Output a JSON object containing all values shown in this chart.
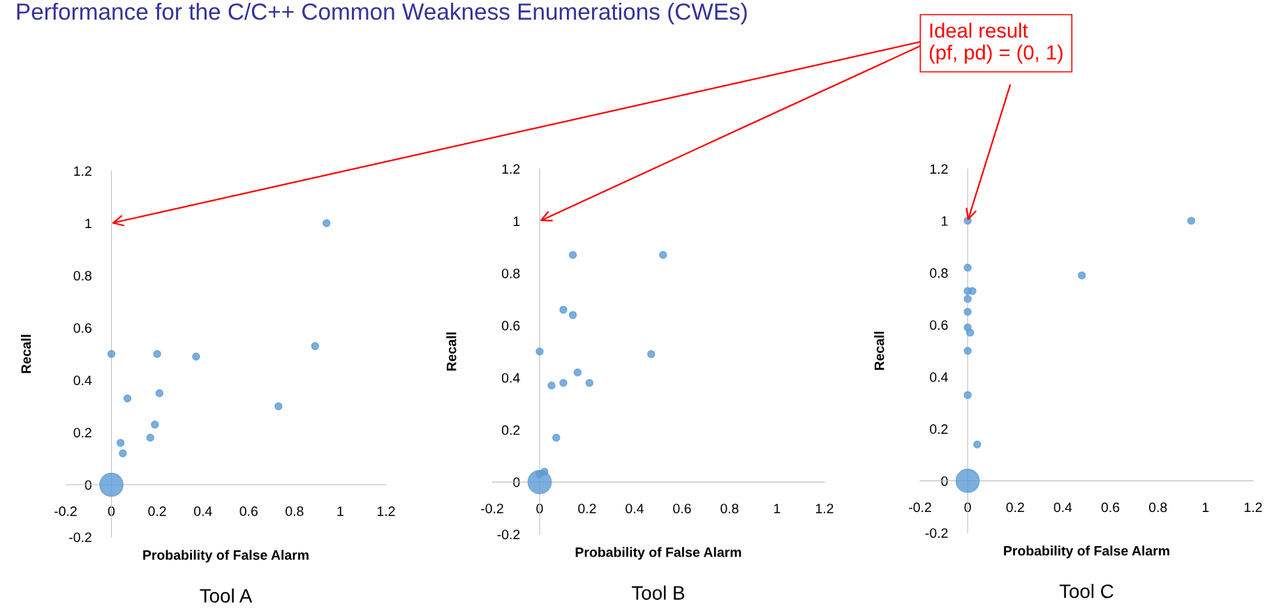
{
  "chart_data": [
    {
      "type": "bubble",
      "title": "Tool A",
      "xlabel": "Probability of False Alarm",
      "ylabel": "Recall",
      "xlim": [
        -0.2,
        1.2
      ],
      "ylim": [
        -0.2,
        1.2
      ],
      "xticks": [
        -0.2,
        0,
        0.2,
        0.4,
        0.6,
        0.8,
        1,
        1.2
      ],
      "yticks": [
        -0.2,
        0,
        0.2,
        0.4,
        0.6,
        0.8,
        1,
        1.2
      ],
      "annotations": [
        "Performance for the C/C++ Common Weakness Enumerations (CWEs)"
      ],
      "series": [
        {
          "color": "#5b9bd5",
          "x": [
            0,
            0,
            0.2,
            0.37,
            0.89,
            0.94,
            0.07,
            0.21,
            0.73,
            0.19,
            0.17,
            0.04,
            0.05
          ],
          "values": [
            0,
            0.5,
            0.5,
            0.49,
            0.53,
            1.0,
            0.33,
            0.35,
            0.3,
            0.23,
            0.18,
            0.16,
            0.12
          ],
          "sizes": [
            1,
            0.09,
            0.09,
            0.09,
            0.09,
            0.09,
            0.09,
            0.09,
            0.09,
            0.09,
            0.09,
            0.09,
            0.09
          ]
        }
      ]
    },
    {
      "type": "bubble",
      "title": "Tool B",
      "xlabel": "Probability of False Alarm",
      "ylabel": "Recall",
      "xlim": [
        -0.2,
        1.2
      ],
      "ylim": [
        -0.2,
        1.2
      ],
      "xticks": [
        -0.2,
        0,
        0.2,
        0.4,
        0.6,
        0.8,
        1,
        1.2
      ],
      "yticks": [
        -0.2,
        0,
        0.2,
        0.4,
        0.6,
        0.8,
        1,
        1.2
      ],
      "series": [
        {
          "color": "#5b9bd5",
          "x": [
            0,
            0,
            0.02,
            0.14,
            0.52,
            0.1,
            0.14,
            0,
            0.47,
            0.16,
            0.05,
            0.1,
            0.21,
            0.07
          ],
          "values": [
            0,
            0.03,
            0.04,
            0.87,
            0.87,
            0.66,
            0.64,
            0.5,
            0.49,
            0.42,
            0.37,
            0.38,
            0.38,
            0.17
          ],
          "sizes": [
            1,
            0.09,
            0.09,
            0.09,
            0.09,
            0.09,
            0.09,
            0.09,
            0.09,
            0.09,
            0.09,
            0.09,
            0.09,
            0.09
          ]
        }
      ]
    },
    {
      "type": "bubble",
      "title": "Tool C",
      "xlabel": "Probability of False Alarm",
      "ylabel": "Recall",
      "xlim": [
        -0.2,
        1.2
      ],
      "ylim": [
        -0.2,
        1.2
      ],
      "xticks": [
        -0.2,
        0,
        0.2,
        0.4,
        0.6,
        0.8,
        1,
        1.2
      ],
      "yticks": [
        -0.2,
        0,
        0.2,
        0.4,
        0.6,
        0.8,
        1,
        1.2
      ],
      "annotations": [
        "Ideal result\n(pf, pd) = (0, 1)"
      ],
      "series": [
        {
          "color": "#5b9bd5",
          "x": [
            0,
            0,
            0.94,
            0,
            0.48,
            0,
            0.02,
            0,
            0,
            0,
            0.01,
            0,
            0,
            0.04
          ],
          "values": [
            0,
            1,
            1,
            0.82,
            0.79,
            0.73,
            0.73,
            0.7,
            0.65,
            0.59,
            0.57,
            0.5,
            0.33,
            0.14
          ],
          "sizes": [
            1,
            0.09,
            0.09,
            0.09,
            0.09,
            0.09,
            0.09,
            0.09,
            0.09,
            0.09,
            0.09,
            0.09,
            0.09,
            0.09
          ]
        }
      ]
    }
  ]
}
